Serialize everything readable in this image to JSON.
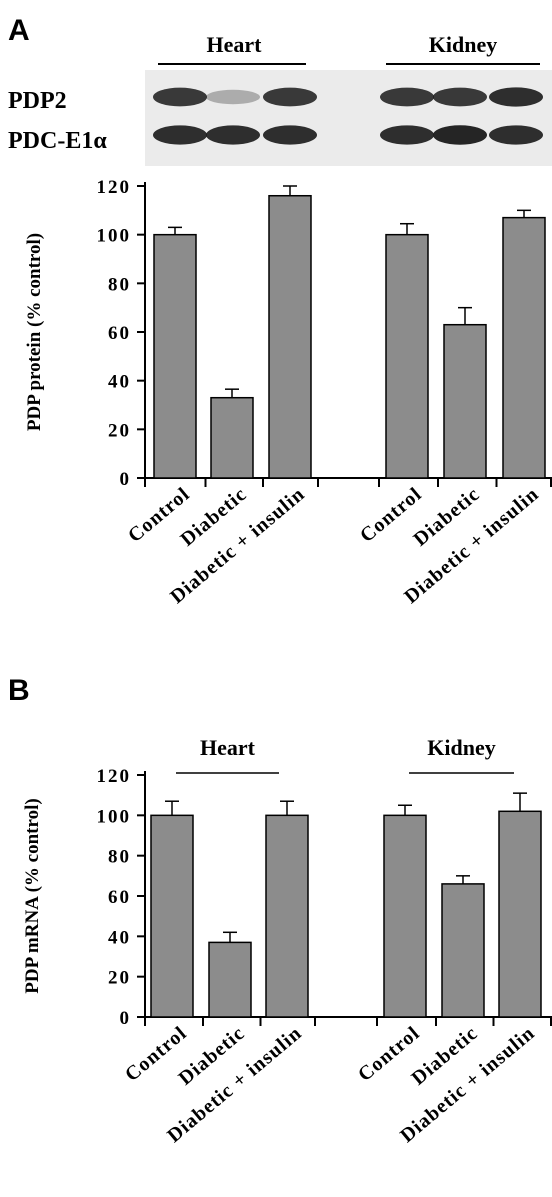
{
  "blot": {
    "panel_label": "A",
    "groups": [
      "Heart",
      "Kidney"
    ],
    "rows": [
      "PDP2",
      "PDC-E1α"
    ],
    "pdp2_band_intensity": [
      0.85,
      0.3,
      0.85,
      0.85,
      0.85,
      0.9
    ],
    "pdc_band_intensity": [
      0.9,
      0.9,
      0.9,
      0.9,
      0.95,
      0.9
    ]
  },
  "colors": {
    "bar": "#8c8c8c",
    "blot_bg": "#ebebeb",
    "band": "#1a1a1a"
  },
  "chart_data": [
    {
      "type": "bar",
      "panel_label": "",
      "ylabel": "PDP protein (% control)",
      "ylim": [
        0,
        120
      ],
      "yticks": [
        "0",
        "20",
        "40",
        "60",
        "80",
        "100",
        "120"
      ],
      "group_labels": [],
      "categories": [
        "Control",
        "Diabetic",
        "Diabetic + insulin",
        "Control",
        "Diabetic",
        "Diabetic + insulin"
      ],
      "values": [
        100,
        33,
        116,
        100,
        63,
        107
      ],
      "errors": [
        3,
        3.5,
        4,
        4.5,
        7,
        3
      ]
    },
    {
      "type": "bar",
      "panel_label": "B",
      "ylabel": "PDP mRNA (% control)",
      "ylim": [
        0,
        120
      ],
      "yticks": [
        "0",
        "20",
        "40",
        "60",
        "80",
        "100",
        "120"
      ],
      "group_labels": [
        "Heart",
        "Kidney"
      ],
      "categories": [
        "Control",
        "Diabetic",
        "Diabetic + insulin",
        "Control",
        "Diabetic",
        "Diabetic + insulin"
      ],
      "values": [
        100,
        37,
        100,
        100,
        66,
        102
      ],
      "errors": [
        7,
        5,
        7,
        5,
        4,
        9
      ]
    }
  ]
}
